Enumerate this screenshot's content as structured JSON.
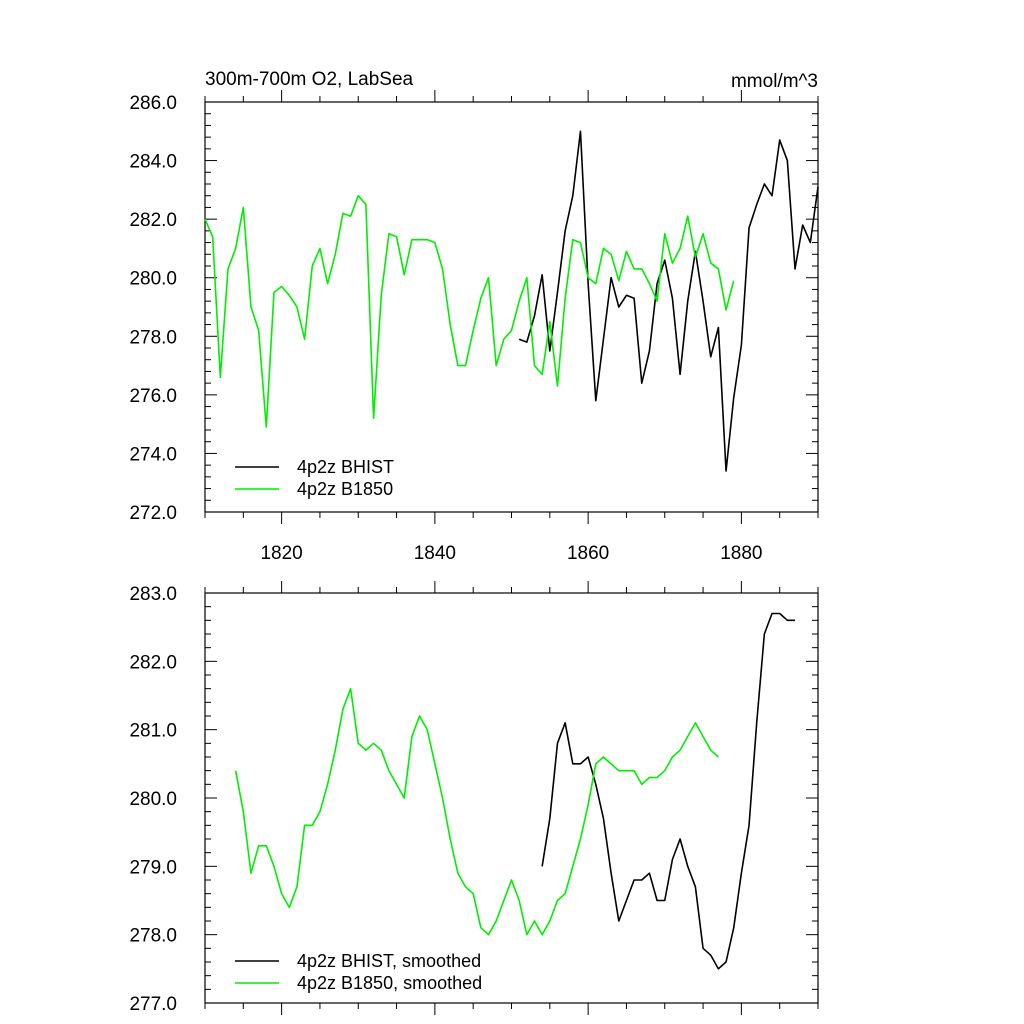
{
  "chart_data": [
    {
      "type": "line",
      "title_left": "300m-700m O2, LabSea",
      "title_right": "mmol/m^3",
      "xlim": [
        1810,
        1890
      ],
      "ylim": [
        272,
        286
      ],
      "xticks": [
        1820,
        1840,
        1860,
        1880
      ],
      "xtick_labels": [
        "1820",
        "1840",
        "1860",
        "1880"
      ],
      "yticks": [
        272,
        274,
        276,
        278,
        280,
        282,
        284,
        286
      ],
      "ytick_labels": [
        "272.0",
        "274.0",
        "276.0",
        "278.0",
        "280.0",
        "282.0",
        "284.0",
        "286.0"
      ],
      "show_xtick_labels": true,
      "legend_placement": "bottom-left",
      "series": [
        {
          "name": "4p2z BHIST",
          "color": "#000000",
          "x_start": 1851,
          "values": [
            277.9,
            277.8,
            278.7,
            280.1,
            277.5,
            279.5,
            281.6,
            282.8,
            285.0,
            279.8,
            275.8,
            277.9,
            280.0,
            279.0,
            279.4,
            279.3,
            276.4,
            277.5,
            279.8,
            280.6,
            279.3,
            276.7,
            279.2,
            280.9,
            279.2,
            277.3,
            278.3,
            273.4,
            275.9,
            277.7,
            281.7,
            282.5,
            283.2,
            282.8,
            284.7,
            284.0,
            280.3,
            281.8,
            281.2,
            283.1
          ]
        },
        {
          "name": "4p2z B1850",
          "color": "#00ee00",
          "x_start": 1810,
          "values": [
            282.0,
            281.4,
            276.6,
            280.3,
            281.0,
            282.4,
            279.0,
            278.2,
            274.9,
            279.5,
            279.7,
            279.4,
            279.0,
            277.9,
            280.4,
            281.0,
            279.8,
            280.8,
            282.2,
            282.1,
            282.8,
            282.5,
            275.2,
            279.4,
            281.5,
            281.4,
            280.1,
            281.3,
            281.3,
            281.3,
            281.2,
            280.3,
            278.4,
            277.0,
            277.0,
            278.2,
            279.3,
            280.0,
            277.0,
            277.9,
            278.2,
            279.2,
            280.0,
            277.0,
            276.7,
            278.5,
            276.3,
            279.3,
            281.3,
            281.2,
            280.0,
            279.8,
            281.0,
            280.8,
            279.9,
            280.9,
            280.3,
            280.3,
            279.8,
            279.2,
            281.5,
            280.5,
            281.0,
            282.1,
            280.7,
            281.5,
            280.5,
            280.3,
            278.9,
            279.9
          ]
        }
      ]
    },
    {
      "type": "line",
      "xlim": [
        1810,
        1890
      ],
      "ylim": [
        277,
        283
      ],
      "xticks": [
        1820,
        1840,
        1860,
        1880
      ],
      "yticks": [
        277,
        278,
        279,
        280,
        281,
        282,
        283
      ],
      "ytick_labels": [
        "277.0",
        "278.0",
        "279.0",
        "280.0",
        "281.0",
        "282.0",
        "283.0"
      ],
      "show_xtick_labels": false,
      "legend_placement": "bottom-left",
      "series": [
        {
          "name": "4p2z BHIST, smoothed",
          "color": "#000000",
          "x_start": 1854,
          "values": [
            279.0,
            279.7,
            280.8,
            281.1,
            280.5,
            280.5,
            280.6,
            280.2,
            279.7,
            278.9,
            278.2,
            278.5,
            278.8,
            278.8,
            278.9,
            278.5,
            278.5,
            279.1,
            279.4,
            279.0,
            278.7,
            277.8,
            277.7,
            277.5,
            277.6,
            278.1,
            278.9,
            279.6,
            281.1,
            282.4,
            282.7,
            282.7,
            282.6,
            282.6
          ]
        },
        {
          "name": "4p2z B1850, smoothed",
          "color": "#00ee00",
          "x_start": 1814,
          "values": [
            280.4,
            279.8,
            278.9,
            279.3,
            279.3,
            279.0,
            278.6,
            278.4,
            278.7,
            279.6,
            279.6,
            279.8,
            280.2,
            280.7,
            281.3,
            281.6,
            280.8,
            280.7,
            280.8,
            280.7,
            280.4,
            280.2,
            280.0,
            280.9,
            281.2,
            281.0,
            280.5,
            280.0,
            279.4,
            278.9,
            278.7,
            278.6,
            278.1,
            278.0,
            278.2,
            278.5,
            278.8,
            278.5,
            278.0,
            278.2,
            278.0,
            278.2,
            278.5,
            278.6,
            279.0,
            279.4,
            279.9,
            280.5,
            280.6,
            280.5,
            280.4,
            280.4,
            280.4,
            280.2,
            280.3,
            280.3,
            280.4,
            280.6,
            280.7,
            280.9,
            281.1,
            280.9,
            280.7,
            280.6
          ]
        }
      ]
    }
  ]
}
